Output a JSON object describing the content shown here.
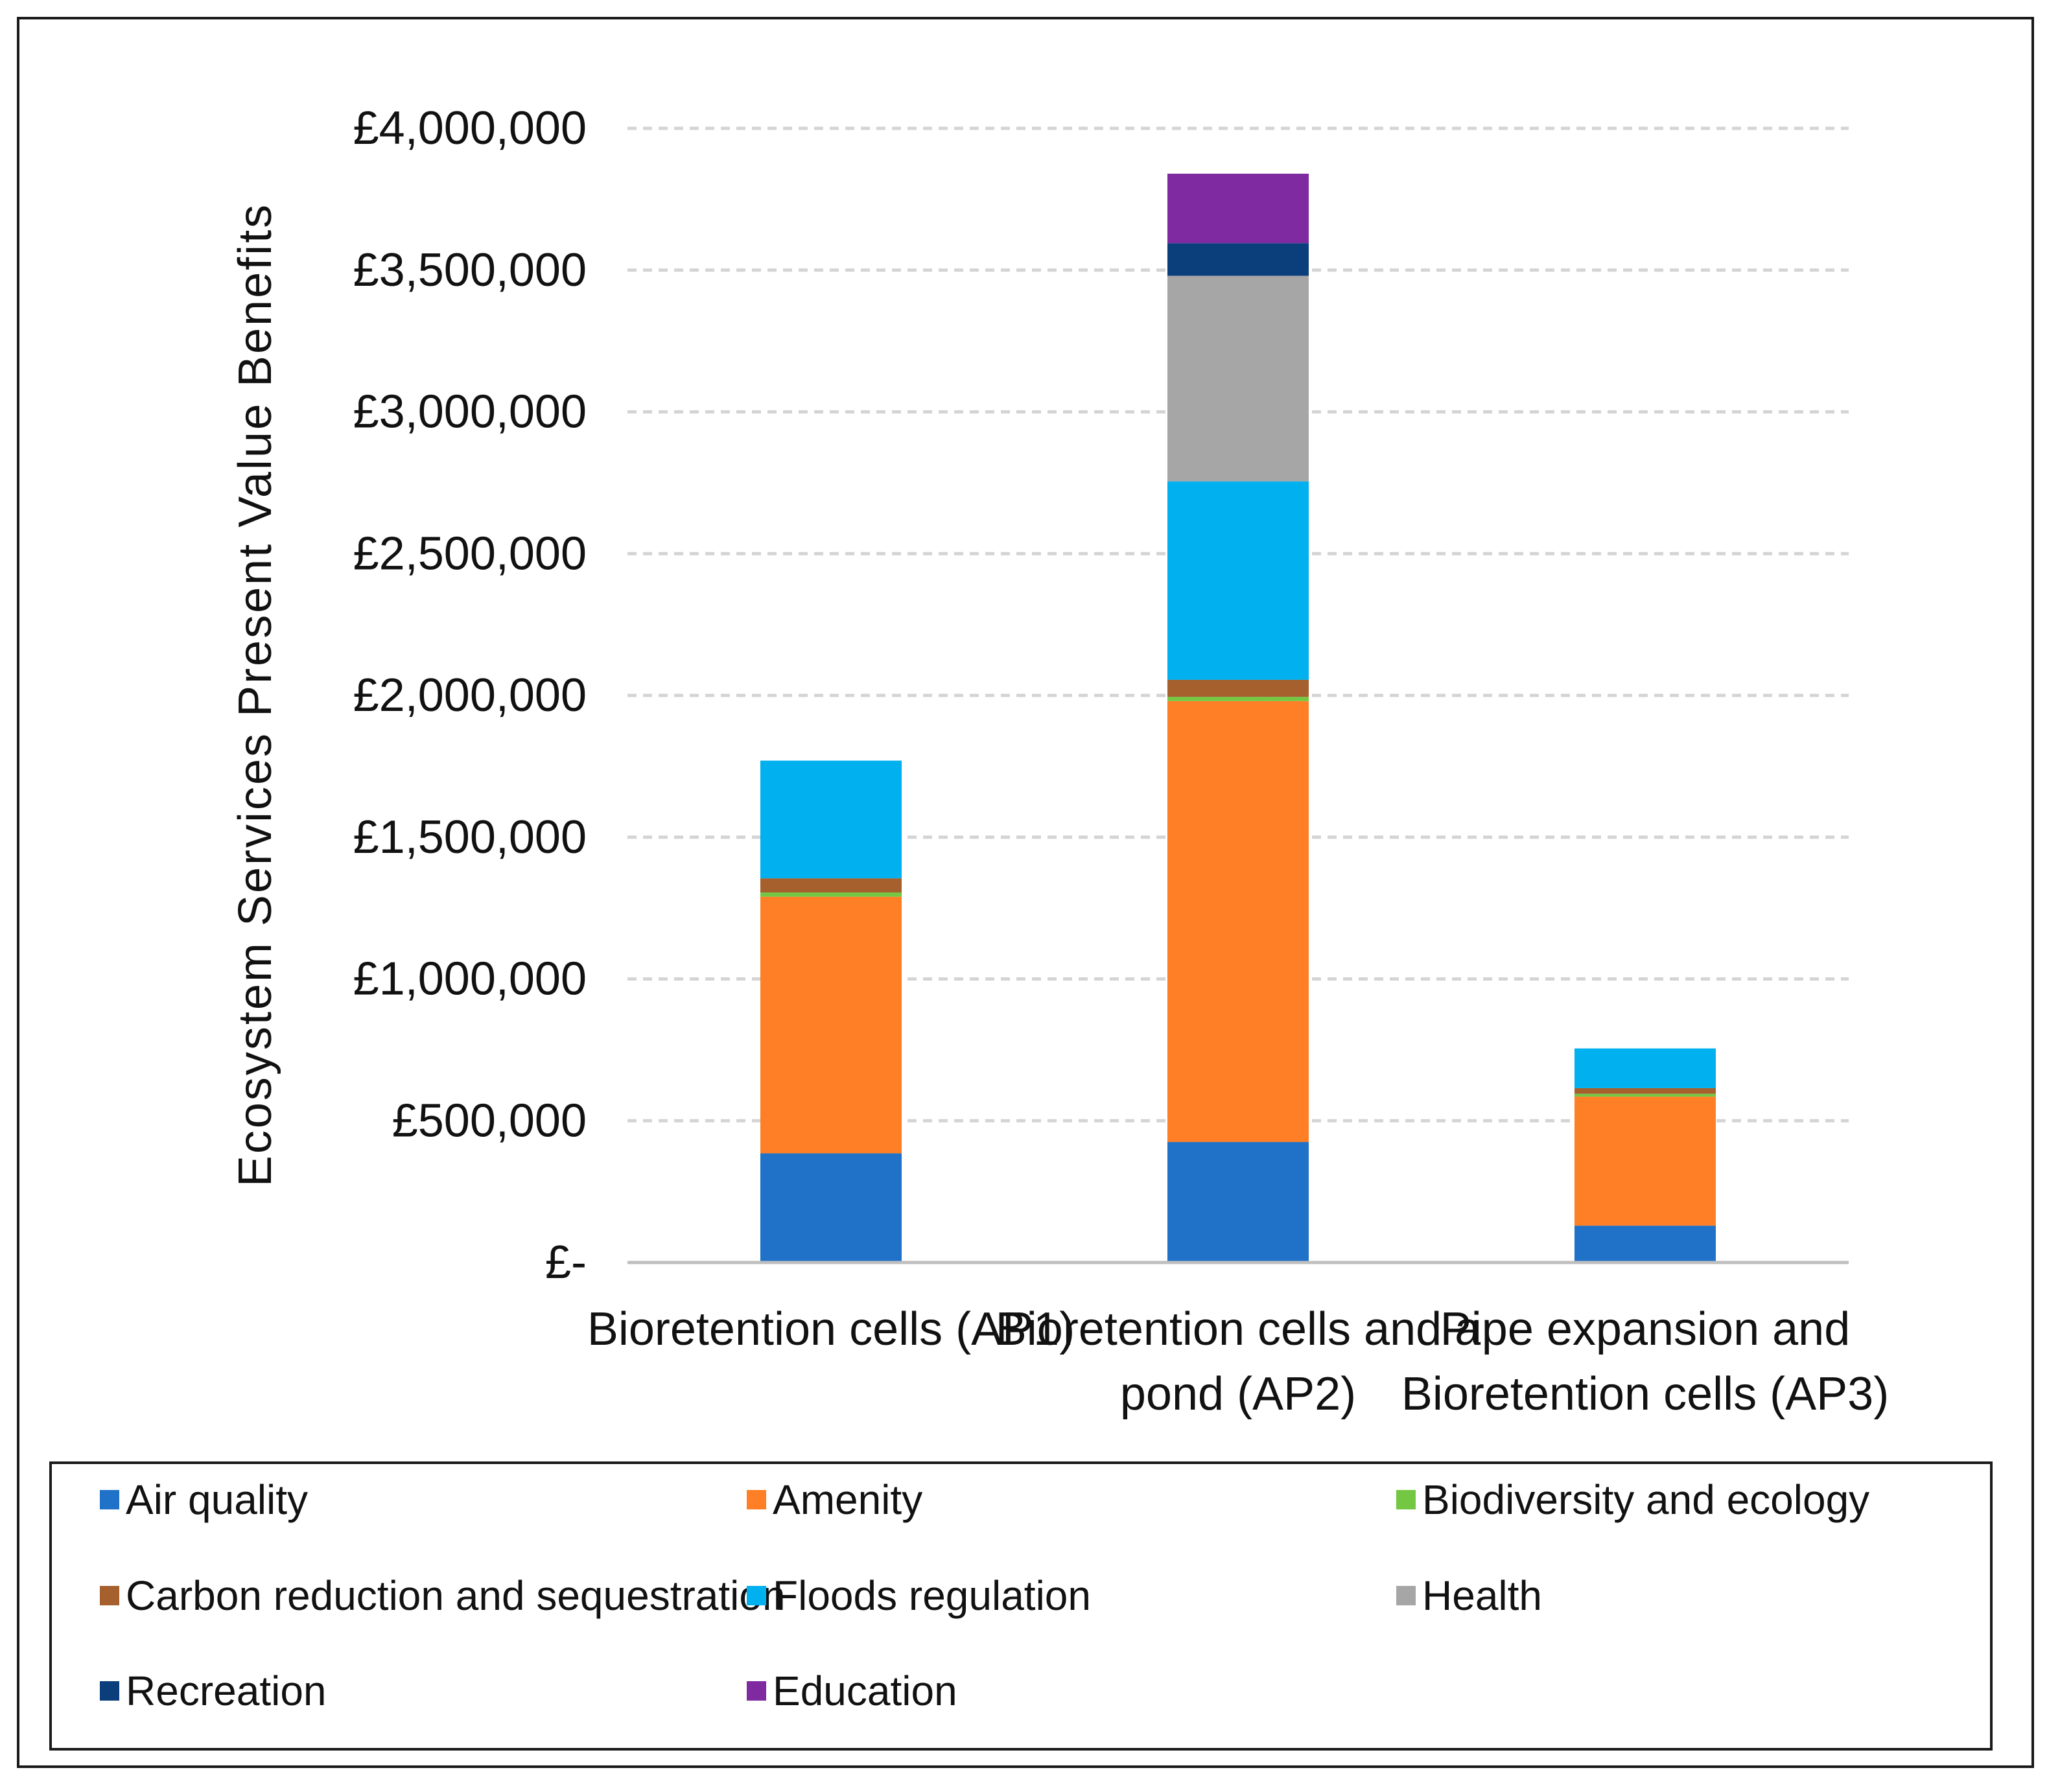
{
  "chart_data": {
    "type": "bar",
    "stacked": true,
    "title": "",
    "xlabel": "",
    "ylabel": "Ecosystem Services Present Value Benefits",
    "ylim": [
      0,
      4000000
    ],
    "ytick_values": [
      0,
      500000,
      1000000,
      1500000,
      2000000,
      2500000,
      3000000,
      3500000,
      4000000
    ],
    "ytick_labels": [
      "£-",
      "£500,000",
      "£1,000,000",
      "£1,500,000",
      "£2,000,000",
      "£2,500,000",
      "£3,000,000",
      "£3,500,000",
      "£4,000,000"
    ],
    "grid": true,
    "legend_position": "bottom",
    "categories": [
      [
        "Bioretention cells (AP1)"
      ],
      [
        "Bioretention cells and a",
        "pond (AP2)"
      ],
      [
        "Pipe expansion and",
        "Bioretention cells (AP3)"
      ]
    ],
    "series": [
      {
        "name": "Air quality",
        "color": "#1f72c8",
        "values": [
          385000,
          425000,
          130000
        ]
      },
      {
        "name": "Amenity",
        "color": "#fe7f26",
        "values": [
          905000,
          1555000,
          455000
        ]
      },
      {
        "name": "Biodiversity and ecology",
        "color": "#74c743",
        "values": [
          15000,
          15000,
          10000
        ]
      },
      {
        "name": "Carbon reduction and sequestration",
        "color": "#a5602e",
        "values": [
          50000,
          60000,
          20000
        ]
      },
      {
        "name": "Floods regulation",
        "color": "#00b0ef",
        "values": [
          415000,
          700000,
          140000
        ]
      },
      {
        "name": "Health",
        "color": "#a6a6a6",
        "values": [
          0,
          725000,
          0
        ]
      },
      {
        "name": "Recreation",
        "color": "#0b3f7c",
        "values": [
          0,
          115000,
          0
        ]
      },
      {
        "name": "Education",
        "color": "#7f2aa0",
        "values": [
          0,
          245000,
          0
        ]
      }
    ]
  }
}
